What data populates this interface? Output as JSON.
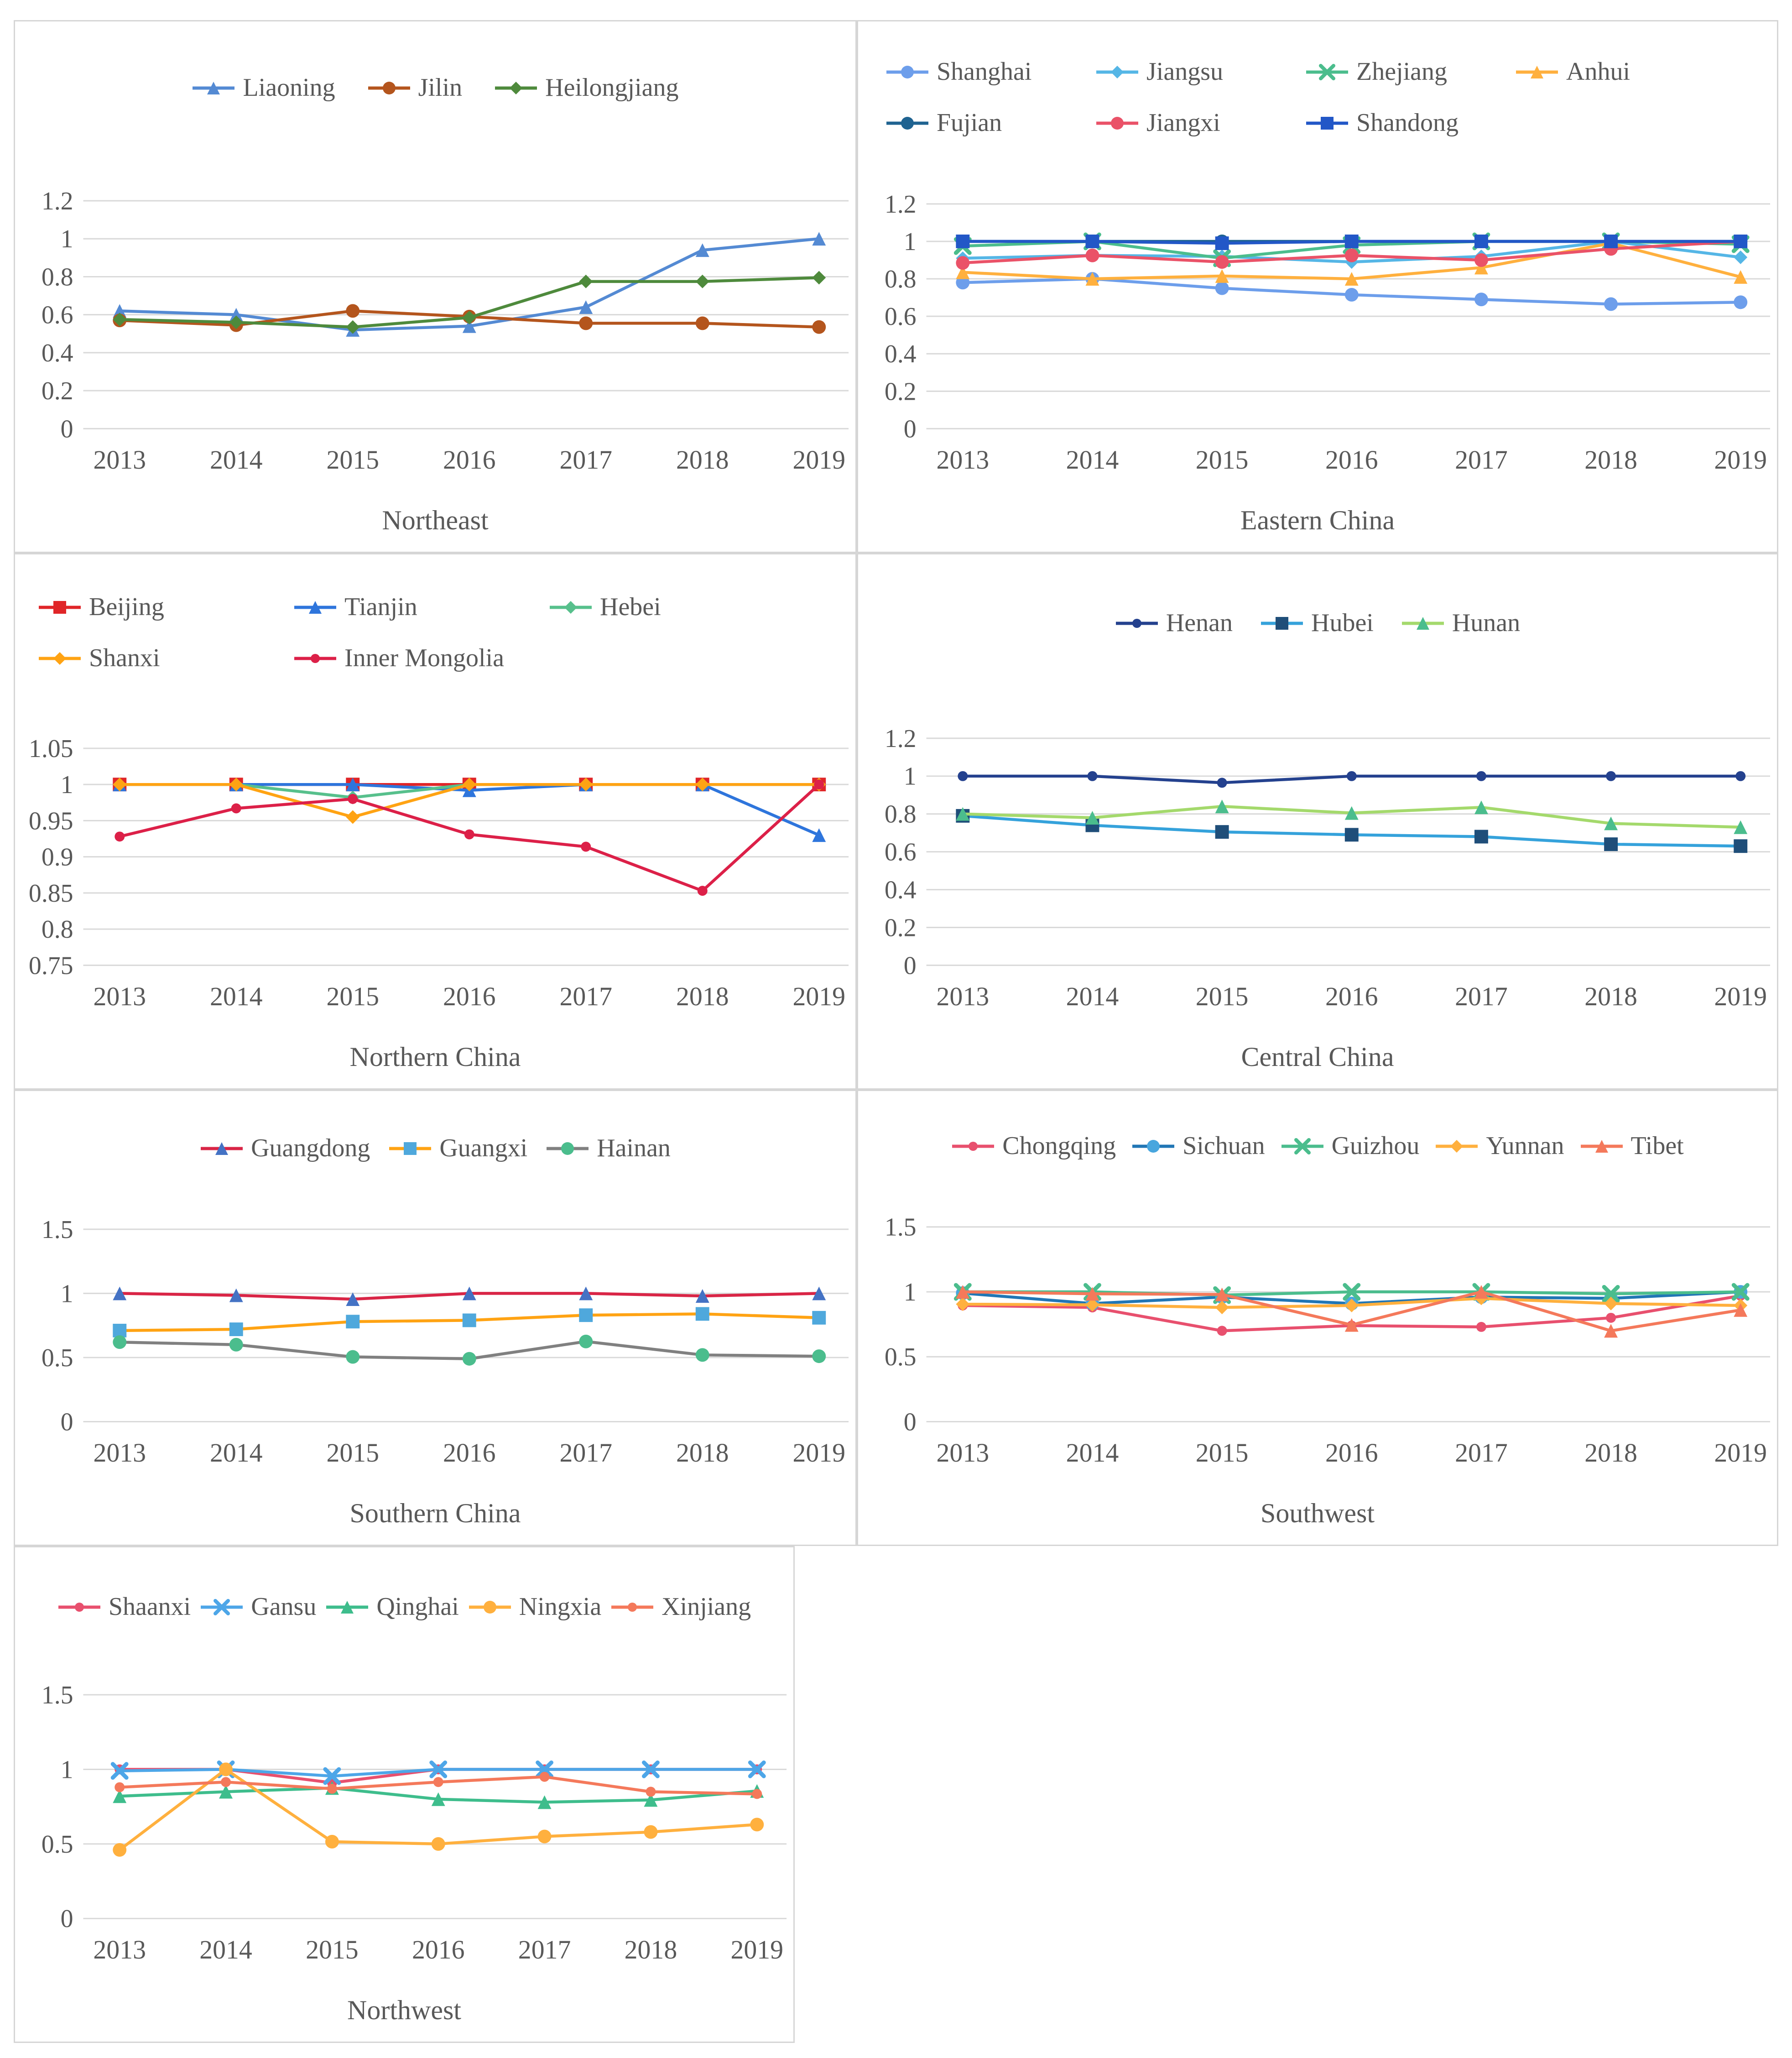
{
  "style": {
    "background": "#ffffff",
    "panel_border_color": "#d6d6d6",
    "grid_color": "#d9d9d9",
    "text_color": "#595959"
  },
  "chart_data": [
    {
      "id": "northeast",
      "type": "line",
      "region": "Northeast",
      "legend_position": "top",
      "grid": true,
      "x": [
        "2013",
        "2014",
        "2015",
        "2016",
        "2017",
        "2018",
        "2019"
      ],
      "ylim": [
        0,
        1.2
      ],
      "y_ticks": [
        1.2,
        1,
        0.8,
        0.6,
        0.4,
        0.2,
        0
      ],
      "series": [
        {
          "name": "Liaoning",
          "color": "#548AD3",
          "marker": "triangle",
          "values": [
            0.62,
            0.6,
            0.52,
            0.54,
            0.64,
            0.94,
            1.0
          ]
        },
        {
          "name": "Jilin",
          "color": "#B4551D",
          "marker": "circle",
          "values": [
            0.57,
            0.545,
            0.62,
            0.59,
            0.555,
            0.555,
            0.535
          ]
        },
        {
          "name": "Heilongjiang",
          "color": "#4E8A3C",
          "marker": "diamond",
          "values": [
            0.575,
            0.56,
            0.535,
            0.585,
            0.775,
            0.775,
            0.795
          ]
        }
      ]
    },
    {
      "id": "eastern-china",
      "type": "line",
      "region": "Eastern China",
      "legend_position": "top",
      "grid": true,
      "x": [
        "2013",
        "2014",
        "2015",
        "2016",
        "2017",
        "2018",
        "2019"
      ],
      "ylim": [
        0,
        1.2
      ],
      "y_ticks": [
        1.2,
        1,
        0.8,
        0.6,
        0.4,
        0.2,
        0
      ],
      "series": [
        {
          "name": "Shanghai",
          "color": "#6D9EEB",
          "marker": "circle",
          "values": [
            0.78,
            0.8,
            0.75,
            0.715,
            0.69,
            0.665,
            0.675
          ]
        },
        {
          "name": "Jiangsu",
          "color": "#55B6E6",
          "marker": "diamond",
          "values": [
            0.91,
            0.925,
            0.92,
            0.89,
            0.92,
            1.0,
            0.915
          ]
        },
        {
          "name": "Zhejiang",
          "color": "#4BBD8D",
          "marker": "x",
          "values": [
            0.975,
            1.0,
            0.91,
            0.98,
            1.0,
            1.0,
            0.985
          ]
        },
        {
          "name": "Anhui",
          "color": "#FFB03E",
          "marker": "triangle",
          "values": [
            0.835,
            0.8,
            0.815,
            0.8,
            0.86,
            0.99,
            0.81
          ]
        },
        {
          "name": "Fujian",
          "color": "#1F6391",
          "marker": "circle",
          "values": [
            1.0,
            1.0,
            1.0,
            1.0,
            1.0,
            1.0,
            1.0
          ]
        },
        {
          "name": "Jiangxi",
          "color": "#EA5268",
          "marker": "circle",
          "values": [
            0.885,
            0.925,
            0.89,
            0.925,
            0.9,
            0.96,
            1.0
          ]
        },
        {
          "name": "Shandong",
          "color": "#2257C7",
          "marker": "square",
          "values": [
            1.0,
            1.0,
            0.99,
            1.0,
            1.0,
            1.0,
            1.0
          ]
        }
      ]
    },
    {
      "id": "northern-china",
      "type": "line",
      "region": "Northern China",
      "legend_position": "top",
      "grid": true,
      "x": [
        "2013",
        "2014",
        "2015",
        "2016",
        "2017",
        "2018",
        "2019"
      ],
      "ylim": [
        0.75,
        1.05
      ],
      "y_ticks": [
        1.05,
        1,
        0.95,
        0.9,
        0.85,
        0.8,
        0.75
      ],
      "series": [
        {
          "name": "Beijing",
          "color": "#E02528",
          "marker": "square",
          "values": [
            1.0,
            1.0,
            1.0,
            1.0,
            1.0,
            1.0,
            1.0
          ]
        },
        {
          "name": "Tianjin",
          "color": "#2E75DC",
          "marker": "triangle",
          "values": [
            1.0,
            1.0,
            1.0,
            0.992,
            1.0,
            1.0,
            0.93
          ]
        },
        {
          "name": "Hebei",
          "color": "#57C08C",
          "marker": "diamond",
          "values": [
            1.0,
            1.0,
            0.982,
            1.0,
            1.0,
            1.0,
            1.0
          ]
        },
        {
          "name": "Shanxi",
          "color": "#FFA313",
          "marker": "diamond",
          "values": [
            1.0,
            1.0,
            0.955,
            1.0,
            1.0,
            1.0,
            1.0
          ]
        },
        {
          "name": "Inner Mongolia",
          "color": "#DC2048",
          "marker": "dot",
          "values": [
            0.928,
            0.967,
            0.98,
            0.931,
            0.914,
            0.853,
            1.0
          ]
        }
      ]
    },
    {
      "id": "central-china",
      "type": "line",
      "region": "Central China",
      "legend_position": "top",
      "grid": true,
      "x": [
        "2013",
        "2014",
        "2015",
        "2016",
        "2017",
        "2018",
        "2019"
      ],
      "ylim": [
        0,
        1.2
      ],
      "y_ticks": [
        1.2,
        1,
        0.8,
        0.6,
        0.4,
        0.2,
        0
      ],
      "series": [
        {
          "name": "Henan",
          "color": "#24418E",
          "marker": "dot",
          "values": [
            1.0,
            1.0,
            0.965,
            1.0,
            1.0,
            1.0,
            1.0
          ]
        },
        {
          "name": "Hubei",
          "color": "#35A2DB",
          "marker": "square",
          "marker_color": "#1F4E79",
          "values": [
            0.79,
            0.74,
            0.705,
            0.69,
            0.68,
            0.64,
            0.63
          ]
        },
        {
          "name": "Hunan",
          "color": "#A4D96C",
          "marker": "triangle",
          "marker_color": "#4BBD8D",
          "values": [
            0.8,
            0.78,
            0.84,
            0.805,
            0.835,
            0.75,
            0.73
          ]
        }
      ]
    },
    {
      "id": "southern-china",
      "type": "line",
      "region": "Southern China",
      "legend_position": "top",
      "grid": true,
      "x": [
        "2013",
        "2014",
        "2015",
        "2016",
        "2017",
        "2018",
        "2019"
      ],
      "ylim": [
        0,
        1.5
      ],
      "y_ticks": [
        1.5,
        1,
        0.5,
        0
      ],
      "series": [
        {
          "name": "Guangdong",
          "color": "#D92546",
          "marker": "triangle",
          "marker_color": "#4472C4",
          "values": [
            1.0,
            0.985,
            0.955,
            1.0,
            1.0,
            0.98,
            1.0
          ]
        },
        {
          "name": "Guangxi",
          "color": "#FFA313",
          "marker": "square",
          "marker_color": "#4FA8DC",
          "values": [
            0.71,
            0.72,
            0.78,
            0.79,
            0.83,
            0.84,
            0.81
          ]
        },
        {
          "name": "Hainan",
          "color": "#808080",
          "marker": "circle",
          "marker_color": "#4BBD8D",
          "values": [
            0.62,
            0.6,
            0.505,
            0.49,
            0.625,
            0.52,
            0.51
          ]
        }
      ]
    },
    {
      "id": "southwest",
      "type": "line",
      "region": "Southwest",
      "legend_position": "top",
      "grid": true,
      "x": [
        "2013",
        "2014",
        "2015",
        "2016",
        "2017",
        "2018",
        "2019"
      ],
      "ylim": [
        0,
        1.5
      ],
      "y_ticks": [
        1.5,
        1,
        0.5,
        0
      ],
      "series": [
        {
          "name": "Chongqing",
          "color": "#E8506E",
          "marker": "dot",
          "values": [
            0.895,
            0.88,
            0.7,
            0.74,
            0.73,
            0.8,
            0.97
          ]
        },
        {
          "name": "Sichuan",
          "color": "#2176B5",
          "marker": "circle",
          "marker_color": "#48A6DE",
          "values": [
            0.99,
            0.91,
            0.96,
            0.91,
            0.96,
            0.95,
            1.0
          ]
        },
        {
          "name": "Guizhou",
          "color": "#4BBD8D",
          "marker": "x",
          "values": [
            1.0,
            1.0,
            0.975,
            1.0,
            1.0,
            0.985,
            1.0
          ]
        },
        {
          "name": "Yunnan",
          "color": "#FFB03E",
          "marker": "diamond",
          "values": [
            0.905,
            0.9,
            0.88,
            0.895,
            0.95,
            0.91,
            0.895
          ]
        },
        {
          "name": "Tibet",
          "color": "#F4795B",
          "marker": "triangle",
          "values": [
            1.0,
            0.985,
            0.98,
            0.745,
            1.0,
            0.7,
            0.86
          ]
        }
      ]
    },
    {
      "id": "northwest",
      "type": "line",
      "region": "Northwest",
      "legend_position": "top",
      "grid": true,
      "x": [
        "2013",
        "2014",
        "2015",
        "2016",
        "2017",
        "2018",
        "2019"
      ],
      "ylim": [
        0,
        1.5
      ],
      "y_ticks": [
        1.5,
        1,
        0.5,
        0
      ],
      "series": [
        {
          "name": "Shaanxi",
          "color": "#E8506E",
          "marker": "dot",
          "values": [
            1.0,
            1.0,
            0.91,
            1.0,
            1.0,
            1.0,
            1.0
          ]
        },
        {
          "name": "Gansu",
          "color": "#4DA6E8",
          "marker": "x",
          "values": [
            0.99,
            1.0,
            0.955,
            1.0,
            1.0,
            1.0,
            1.0
          ]
        },
        {
          "name": "Qinghai",
          "color": "#3EBD8C",
          "marker": "triangle",
          "values": [
            0.82,
            0.85,
            0.875,
            0.8,
            0.78,
            0.795,
            0.855
          ]
        },
        {
          "name": "Ningxia",
          "color": "#FFB03E",
          "marker": "circle",
          "values": [
            0.46,
            1.0,
            0.515,
            0.5,
            0.55,
            0.58,
            0.63
          ]
        },
        {
          "name": "Xinjiang",
          "color": "#F4795B",
          "marker": "dot",
          "values": [
            0.88,
            0.915,
            0.87,
            0.915,
            0.95,
            0.85,
            0.835
          ]
        }
      ]
    }
  ]
}
